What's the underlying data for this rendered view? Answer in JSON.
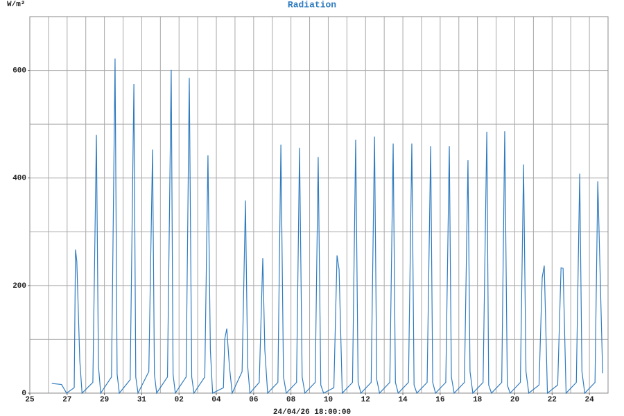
{
  "chart_data": {
    "type": "line",
    "title": "Radiation",
    "y_unit": "W/m²",
    "xlabel": "24/04/26 18:00:00",
    "color": "#2f7bbf",
    "grid": true,
    "xgrid_step": 1,
    "ygrid_step": 100,
    "xlim": [
      0,
      31
    ],
    "ylim": [
      0,
      700
    ],
    "yticks": [
      0,
      200,
      400,
      600
    ],
    "xticks": [
      {
        "value": 0,
        "label": "25"
      },
      {
        "value": 2,
        "label": "27"
      },
      {
        "value": 4,
        "label": "29"
      },
      {
        "value": 6,
        "label": "31"
      },
      {
        "value": 8,
        "label": "02"
      },
      {
        "value": 10,
        "label": "04"
      },
      {
        "value": 12,
        "label": "06"
      },
      {
        "value": 14,
        "label": "08"
      },
      {
        "value": 16,
        "label": "10"
      },
      {
        "value": 18,
        "label": "12"
      },
      {
        "value": 20,
        "label": "14"
      },
      {
        "value": 22,
        "label": "16"
      },
      {
        "value": 24,
        "label": "18"
      },
      {
        "value": 26,
        "label": "20"
      },
      {
        "value": 28,
        "label": "22"
      },
      {
        "value": 30,
        "label": "24"
      }
    ],
    "x": [
      1.18,
      1.7,
      1.97,
      2.38,
      2.45,
      2.52,
      2.68,
      2.8,
      3.38,
      3.57,
      3.68,
      3.8,
      4.38,
      4.57,
      4.68,
      4.8,
      5.38,
      5.58,
      5.68,
      5.8,
      6.38,
      6.58,
      6.68,
      6.8,
      7.38,
      7.58,
      7.68,
      7.8,
      8.38,
      8.55,
      8.68,
      8.8,
      9.38,
      9.55,
      9.68,
      9.8,
      10.38,
      10.45,
      10.56,
      10.7,
      10.85,
      11.38,
      11.56,
      11.68,
      11.8,
      12.3,
      12.49,
      12.6,
      12.75,
      13.3,
      13.46,
      13.6,
      13.75,
      14.3,
      14.46,
      14.6,
      14.75,
      15.3,
      15.46,
      15.6,
      15.75,
      16.3,
      16.47,
      16.58,
      16.75,
      17.3,
      17.47,
      17.6,
      17.75,
      18.3,
      18.48,
      18.6,
      18.75,
      19.3,
      19.48,
      19.6,
      19.75,
      20.3,
      20.48,
      20.6,
      20.75,
      21.3,
      21.49,
      21.6,
      21.75,
      22.3,
      22.49,
      22.6,
      22.75,
      23.3,
      23.49,
      23.6,
      23.75,
      24.3,
      24.5,
      24.6,
      24.75,
      25.3,
      25.46,
      25.6,
      25.75,
      26.3,
      26.47,
      26.6,
      26.75,
      27.3,
      27.47,
      27.58,
      27.75,
      28.3,
      28.48,
      28.59,
      28.75,
      29.3,
      29.48,
      29.6,
      29.75,
      30.3,
      30.45,
      30.71
    ],
    "values": [
      18,
      16,
      0,
      10,
      267,
      245,
      60,
      0,
      20,
      480,
      50,
      0,
      30,
      622,
      35,
      0,
      25,
      575,
      30,
      0,
      40,
      453,
      35,
      0,
      30,
      601,
      35,
      0,
      30,
      586,
      30,
      0,
      30,
      442,
      80,
      0,
      10,
      100,
      120,
      50,
      0,
      40,
      358,
      50,
      0,
      20,
      251,
      80,
      0,
      20,
      462,
      30,
      0,
      20,
      456,
      30,
      0,
      20,
      439,
      15,
      0,
      10,
      256,
      230,
      0,
      20,
      471,
      20,
      0,
      20,
      477,
      25,
      0,
      20,
      464,
      20,
      0,
      20,
      464,
      15,
      0,
      20,
      459,
      20,
      0,
      20,
      459,
      30,
      0,
      20,
      433,
      40,
      0,
      20,
      486,
      15,
      0,
      20,
      487,
      15,
      0,
      20,
      425,
      40,
      0,
      15,
      215,
      237,
      0,
      15,
      233,
      232,
      0,
      20,
      408,
      40,
      0,
      20,
      394,
      37
    ]
  }
}
